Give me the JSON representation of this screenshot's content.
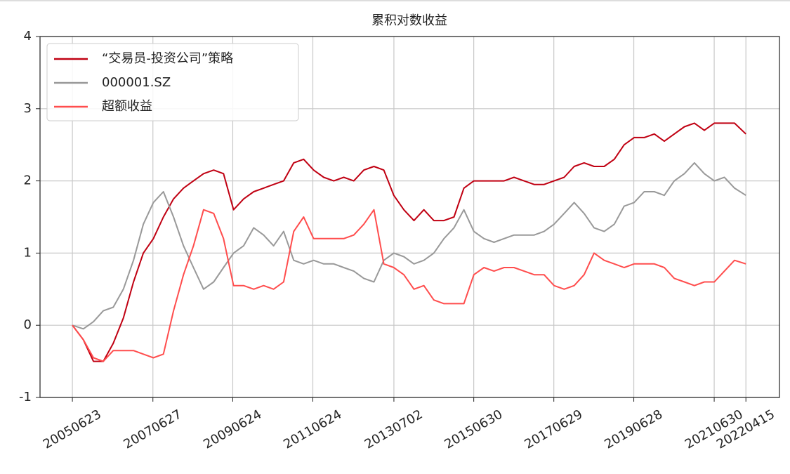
{
  "chart_data": {
    "type": "line",
    "title": "累积对数收益",
    "x": [
      "20050623",
      "20051001",
      "20060101",
      "20060401",
      "20060701",
      "20061001",
      "20070101",
      "20070401",
      "20070701",
      "20071001",
      "20080101",
      "20080401",
      "20080701",
      "20081001",
      "20090101",
      "20090401",
      "20090701",
      "20091001",
      "20100101",
      "20100401",
      "20100701",
      "20101001",
      "20110101",
      "20110401",
      "20110701",
      "20111001",
      "20120101",
      "20120401",
      "20120701",
      "20121001",
      "20130101",
      "20130401",
      "20130701",
      "20131001",
      "20140101",
      "20140401",
      "20140701",
      "20141001",
      "20150101",
      "20150401",
      "20150701",
      "20151001",
      "20160101",
      "20160401",
      "20160701",
      "20161001",
      "20170101",
      "20170401",
      "20170701",
      "20171001",
      "20180101",
      "20180401",
      "20180701",
      "20181001",
      "20190101",
      "20190401",
      "20190701",
      "20191001",
      "20200101",
      "20200401",
      "20200701",
      "20201001",
      "20210101",
      "20210401",
      "20210701",
      "20211001",
      "20220101",
      "20220415"
    ],
    "series": [
      {
        "name": "“交易员-投资公司”策略",
        "color": "#c00012",
        "values": [
          0,
          -0.2,
          -0.5,
          -0.5,
          -0.25,
          0.1,
          0.6,
          1.0,
          1.2,
          1.5,
          1.75,
          1.9,
          2.0,
          2.1,
          2.15,
          2.1,
          1.6,
          1.75,
          1.85,
          1.9,
          1.95,
          2.0,
          2.25,
          2.3,
          2.15,
          2.05,
          2.0,
          2.05,
          2.0,
          2.15,
          2.2,
          2.15,
          1.8,
          1.6,
          1.45,
          1.6,
          1.45,
          1.45,
          1.5,
          1.9,
          2.0,
          2.0,
          2.0,
          2.0,
          2.05,
          2.0,
          1.95,
          1.95,
          2.0,
          2.05,
          2.2,
          2.25,
          2.2,
          2.2,
          2.3,
          2.5,
          2.6,
          2.6,
          2.65,
          2.55,
          2.65,
          2.75,
          2.8,
          2.7,
          2.8,
          2.8,
          2.8,
          2.65
        ]
      },
      {
        "name": "000001.SZ",
        "color": "#999999",
        "values": [
          0,
          -0.05,
          0.05,
          0.2,
          0.25,
          0.5,
          0.9,
          1.4,
          1.7,
          1.85,
          1.5,
          1.1,
          0.8,
          0.5,
          0.6,
          0.8,
          1.0,
          1.1,
          1.35,
          1.25,
          1.1,
          1.3,
          0.9,
          0.85,
          0.9,
          0.85,
          0.85,
          0.8,
          0.75,
          0.65,
          0.6,
          0.9,
          1.0,
          0.95,
          0.85,
          0.9,
          1.0,
          1.2,
          1.35,
          1.6,
          1.3,
          1.2,
          1.15,
          1.2,
          1.25,
          1.25,
          1.25,
          1.3,
          1.4,
          1.55,
          1.7,
          1.55,
          1.35,
          1.3,
          1.4,
          1.65,
          1.7,
          1.85,
          1.85,
          1.8,
          2.0,
          2.1,
          2.25,
          2.1,
          2.0,
          2.05,
          1.9,
          1.8
        ]
      },
      {
        "name": "超额收益",
        "color": "#ff4d4d",
        "values": [
          0,
          -0.2,
          -0.45,
          -0.5,
          -0.35,
          -0.35,
          -0.35,
          -0.4,
          -0.45,
          -0.4,
          0.2,
          0.7,
          1.1,
          1.6,
          1.55,
          1.2,
          0.55,
          0.55,
          0.5,
          0.55,
          0.5,
          0.6,
          1.3,
          1.5,
          1.2,
          1.2,
          1.2,
          1.2,
          1.25,
          1.4,
          1.6,
          0.85,
          0.8,
          0.7,
          0.5,
          0.55,
          0.35,
          0.3,
          0.3,
          0.3,
          0.7,
          0.8,
          0.75,
          0.8,
          0.8,
          0.75,
          0.7,
          0.7,
          0.55,
          0.5,
          0.55,
          0.7,
          1.0,
          0.9,
          0.85,
          0.8,
          0.85,
          0.85,
          0.85,
          0.8,
          0.65,
          0.6,
          0.55,
          0.6,
          0.6,
          0.75,
          0.9,
          0.85
        ]
      }
    ],
    "xlim": [
      "20040901",
      "20230215"
    ],
    "xticks": [
      "20050623",
      "20070627",
      "20090624",
      "20110624",
      "20130702",
      "20150630",
      "20170629",
      "20190628",
      "20210630",
      "20220415"
    ],
    "ylim": [
      -1,
      4
    ],
    "yticks": [
      -1,
      0,
      1,
      2,
      3,
      4
    ],
    "grid": true,
    "legend": "upper left"
  }
}
